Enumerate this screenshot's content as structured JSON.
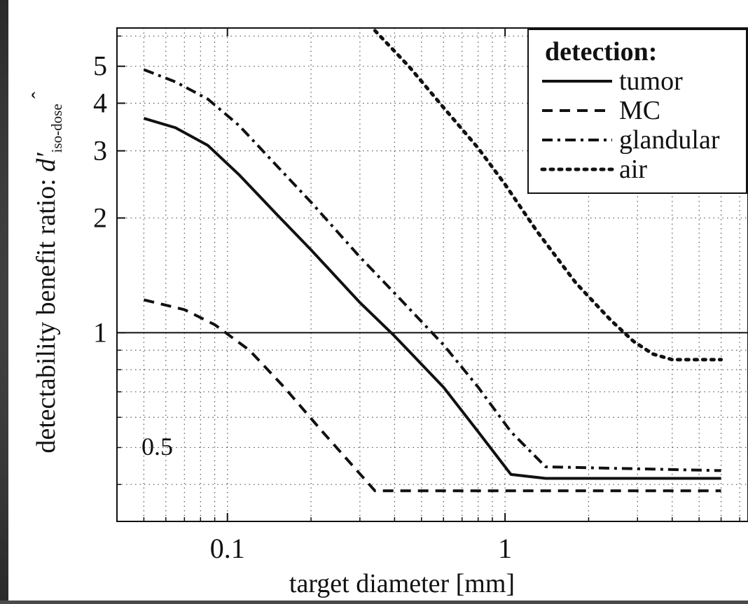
{
  "chart_data": {
    "type": "line",
    "title": "",
    "xlabel": "target diameter [mm]",
    "ylabel_main": "detectability benefit ratio: ",
    "ylabel_symbol": "d′",
    "ylabel_subscript": "iso-dose",
    "x_scale": "log",
    "y_scale": "log",
    "xlim": [
      0.04,
      7.5
    ],
    "ylim": [
      0.32,
      6.3
    ],
    "x_tick_values": [
      0.1,
      1
    ],
    "x_tick_labels": [
      "0.1",
      "1"
    ],
    "y_tick_values": [
      1,
      2,
      3,
      4,
      5
    ],
    "y_tick_labels": [
      "1",
      "2",
      "3",
      "4",
      "5"
    ],
    "y_inside_annotation": {
      "value": 0.5,
      "label": "0.5"
    },
    "reference_line_y": 1,
    "grid": true,
    "legend_title": "detection:",
    "legend_position": "top-right",
    "series": [
      {
        "name": "tumor",
        "style": "solid",
        "x": [
          0.05,
          0.065,
          0.085,
          0.11,
          0.15,
          0.2,
          0.3,
          0.4,
          0.6,
          0.8,
          1.05,
          1.4,
          6.0
        ],
        "values": [
          3.65,
          3.45,
          3.1,
          2.6,
          2.05,
          1.65,
          1.2,
          0.98,
          0.72,
          0.55,
          0.425,
          0.415,
          0.415
        ]
      },
      {
        "name": "MC",
        "style": "dashed",
        "x": [
          0.05,
          0.07,
          0.09,
          0.12,
          0.16,
          0.22,
          0.34,
          6.0
        ],
        "values": [
          1.22,
          1.15,
          1.05,
          0.9,
          0.72,
          0.55,
          0.385,
          0.385
        ]
      },
      {
        "name": "glandular",
        "style": "dash-dot",
        "x": [
          0.05,
          0.065,
          0.085,
          0.11,
          0.15,
          0.2,
          0.3,
          0.4,
          0.6,
          0.8,
          1.05,
          1.4,
          6.0
        ],
        "values": [
          4.9,
          4.55,
          4.1,
          3.5,
          2.75,
          2.2,
          1.58,
          1.27,
          0.93,
          0.72,
          0.55,
          0.445,
          0.435
        ]
      },
      {
        "name": "air",
        "style": "dotted",
        "x": [
          0.34,
          0.45,
          0.6,
          0.8,
          1.0,
          1.3,
          1.8,
          2.4,
          2.9,
          3.4,
          4.0,
          6.0
        ],
        "values": [
          6.2,
          5.0,
          3.9,
          3.05,
          2.45,
          1.85,
          1.35,
          1.08,
          0.95,
          0.88,
          0.85,
          0.85
        ]
      }
    ]
  }
}
